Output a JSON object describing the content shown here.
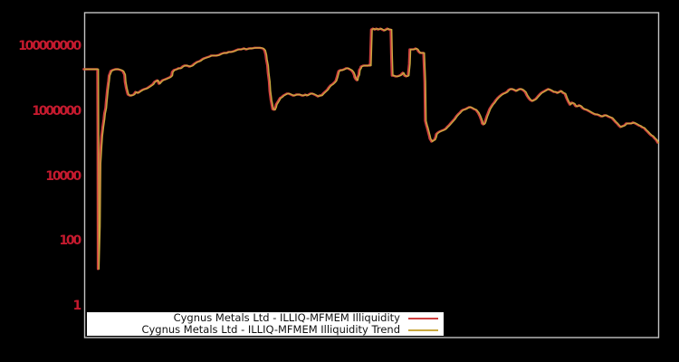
{
  "figure": {
    "background": "#000000",
    "frame_color": "#c3c3c3",
    "tick_label_color": "#c41a2e",
    "legend_background": "#ffffff"
  },
  "chart_data": {
    "type": "line",
    "title": "",
    "xlabel": "",
    "ylabel": "",
    "x_axis_labels_visible": false,
    "grid": false,
    "legend_position": "bottom-inside",
    "y_scale": "log10",
    "ylim_log10": [
      -0.97,
      9.03
    ],
    "y_ticks": [
      {
        "label": "100000000",
        "log10": 8
      },
      {
        "label": "1000000",
        "log10": 6
      },
      {
        "label": "10000",
        "log10": 4
      },
      {
        "label": "100",
        "log10": 2
      },
      {
        "label": "1",
        "log10": 0
      }
    ],
    "series": [
      {
        "name": "Cygnus Metals Ltd - ILLIQ-MFMEM Illiquidity",
        "color": "#cf4040",
        "width": 2.4
      },
      {
        "name": "Cygnus Metals Ltd - ILLIQ-MFMEM Illiquidity Trend",
        "color": "#c9a83f",
        "width": 1.4,
        "note": "coincides with illiquidity series at chart resolution"
      }
    ],
    "points_t_log10": [
      [
        0.0,
        7.29
      ],
      [
        0.024,
        7.29
      ],
      [
        0.0245,
        5.23
      ],
      [
        0.025,
        1.14
      ],
      [
        0.027,
        2.45
      ],
      [
        0.028,
        4.39
      ],
      [
        0.03,
        4.95
      ],
      [
        0.031,
        5.23
      ],
      [
        0.033,
        5.51
      ],
      [
        0.035,
        5.76
      ],
      [
        0.036,
        5.92
      ],
      [
        0.038,
        6.09
      ],
      [
        0.039,
        6.29
      ],
      [
        0.041,
        6.65
      ],
      [
        0.043,
        6.93
      ],
      [
        0.044,
        7.09
      ],
      [
        0.046,
        7.18
      ],
      [
        0.047,
        7.23
      ],
      [
        0.05,
        7.26
      ],
      [
        0.055,
        7.29
      ],
      [
        0.06,
        7.29
      ],
      [
        0.065,
        7.26
      ],
      [
        0.068,
        7.23
      ],
      [
        0.071,
        7.12
      ],
      [
        0.072,
        6.9
      ],
      [
        0.074,
        6.7
      ],
      [
        0.076,
        6.56
      ],
      [
        0.077,
        6.51
      ],
      [
        0.08,
        6.48
      ],
      [
        0.083,
        6.48
      ],
      [
        0.087,
        6.51
      ],
      [
        0.09,
        6.59
      ],
      [
        0.094,
        6.56
      ],
      [
        0.099,
        6.62
      ],
      [
        0.102,
        6.65
      ],
      [
        0.106,
        6.68
      ],
      [
        0.11,
        6.7
      ],
      [
        0.115,
        6.76
      ],
      [
        0.12,
        6.82
      ],
      [
        0.123,
        6.9
      ],
      [
        0.128,
        6.95
      ],
      [
        0.131,
        6.84
      ],
      [
        0.134,
        6.9
      ],
      [
        0.137,
        6.95
      ],
      [
        0.142,
        6.98
      ],
      [
        0.146,
        7.01
      ],
      [
        0.15,
        7.04
      ],
      [
        0.153,
        7.09
      ],
      [
        0.154,
        7.2
      ],
      [
        0.157,
        7.26
      ],
      [
        0.162,
        7.29
      ],
      [
        0.165,
        7.32
      ],
      [
        0.169,
        7.32
      ],
      [
        0.172,
        7.37
      ],
      [
        0.175,
        7.4
      ],
      [
        0.18,
        7.4
      ],
      [
        0.184,
        7.37
      ],
      [
        0.189,
        7.4
      ],
      [
        0.192,
        7.45
      ],
      [
        0.197,
        7.51
      ],
      [
        0.202,
        7.54
      ],
      [
        0.206,
        7.59
      ],
      [
        0.209,
        7.62
      ],
      [
        0.214,
        7.65
      ],
      [
        0.219,
        7.68
      ],
      [
        0.222,
        7.71
      ],
      [
        0.227,
        7.71
      ],
      [
        0.231,
        7.71
      ],
      [
        0.236,
        7.73
      ],
      [
        0.239,
        7.76
      ],
      [
        0.244,
        7.79
      ],
      [
        0.249,
        7.79
      ],
      [
        0.252,
        7.82
      ],
      [
        0.257,
        7.82
      ],
      [
        0.261,
        7.84
      ],
      [
        0.265,
        7.87
      ],
      [
        0.269,
        7.9
      ],
      [
        0.274,
        7.9
      ],
      [
        0.279,
        7.93
      ],
      [
        0.283,
        7.9
      ],
      [
        0.288,
        7.93
      ],
      [
        0.293,
        7.93
      ],
      [
        0.298,
        7.95
      ],
      [
        0.302,
        7.95
      ],
      [
        0.307,
        7.95
      ],
      [
        0.312,
        7.93
      ],
      [
        0.315,
        7.87
      ],
      [
        0.317,
        7.73
      ],
      [
        0.318,
        7.59
      ],
      [
        0.32,
        7.4
      ],
      [
        0.321,
        7.18
      ],
      [
        0.323,
        6.9
      ],
      [
        0.324,
        6.62
      ],
      [
        0.326,
        6.34
      ],
      [
        0.328,
        6.15
      ],
      [
        0.329,
        6.06
      ],
      [
        0.332,
        6.04
      ],
      [
        0.334,
        6.12
      ],
      [
        0.335,
        6.2
      ],
      [
        0.339,
        6.31
      ],
      [
        0.342,
        6.4
      ],
      [
        0.345,
        6.43
      ],
      [
        0.348,
        6.48
      ],
      [
        0.351,
        6.51
      ],
      [
        0.354,
        6.54
      ],
      [
        0.357,
        6.54
      ],
      [
        0.361,
        6.51
      ],
      [
        0.364,
        6.48
      ],
      [
        0.367,
        6.48
      ],
      [
        0.37,
        6.51
      ],
      [
        0.373,
        6.51
      ],
      [
        0.376,
        6.51
      ],
      [
        0.38,
        6.48
      ],
      [
        0.383,
        6.48
      ],
      [
        0.386,
        6.51
      ],
      [
        0.389,
        6.48
      ],
      [
        0.392,
        6.51
      ],
      [
        0.395,
        6.54
      ],
      [
        0.398,
        6.54
      ],
      [
        0.402,
        6.51
      ],
      [
        0.405,
        6.48
      ],
      [
        0.408,
        6.45
      ],
      [
        0.411,
        6.48
      ],
      [
        0.414,
        6.48
      ],
      [
        0.417,
        6.54
      ],
      [
        0.42,
        6.59
      ],
      [
        0.424,
        6.65
      ],
      [
        0.427,
        6.73
      ],
      [
        0.43,
        6.79
      ],
      [
        0.433,
        6.82
      ],
      [
        0.436,
        6.87
      ],
      [
        0.439,
        6.93
      ],
      [
        0.441,
        7.04
      ],
      [
        0.443,
        7.18
      ],
      [
        0.444,
        7.23
      ],
      [
        0.447,
        7.26
      ],
      [
        0.45,
        7.26
      ],
      [
        0.454,
        7.29
      ],
      [
        0.457,
        7.32
      ],
      [
        0.46,
        7.32
      ],
      [
        0.463,
        7.29
      ],
      [
        0.466,
        7.26
      ],
      [
        0.469,
        7.2
      ],
      [
        0.471,
        7.12
      ],
      [
        0.472,
        7.04
      ],
      [
        0.474,
        6.98
      ],
      [
        0.476,
        6.95
      ],
      [
        0.477,
        7.04
      ],
      [
        0.479,
        7.12
      ],
      [
        0.48,
        7.26
      ],
      [
        0.482,
        7.32
      ],
      [
        0.483,
        7.37
      ],
      [
        0.487,
        7.4
      ],
      [
        0.491,
        7.4
      ],
      [
        0.496,
        7.4
      ],
      [
        0.498,
        7.43
      ],
      [
        0.499,
        7.4
      ],
      [
        0.501,
        8.51
      ],
      [
        0.504,
        8.54
      ],
      [
        0.507,
        8.51
      ],
      [
        0.51,
        8.54
      ],
      [
        0.513,
        8.51
      ],
      [
        0.517,
        8.54
      ],
      [
        0.52,
        8.51
      ],
      [
        0.523,
        8.48
      ],
      [
        0.526,
        8.51
      ],
      [
        0.529,
        8.54
      ],
      [
        0.532,
        8.51
      ],
      [
        0.535,
        8.51
      ],
      [
        0.536,
        7.73
      ],
      [
        0.537,
        7.09
      ],
      [
        0.54,
        7.09
      ],
      [
        0.543,
        7.07
      ],
      [
        0.546,
        7.07
      ],
      [
        0.55,
        7.09
      ],
      [
        0.553,
        7.12
      ],
      [
        0.554,
        7.15
      ],
      [
        0.556,
        7.18
      ],
      [
        0.557,
        7.15
      ],
      [
        0.559,
        7.09
      ],
      [
        0.562,
        7.07
      ],
      [
        0.565,
        7.09
      ],
      [
        0.567,
        7.45
      ],
      [
        0.568,
        7.9
      ],
      [
        0.572,
        7.9
      ],
      [
        0.575,
        7.9
      ],
      [
        0.578,
        7.93
      ],
      [
        0.581,
        7.9
      ],
      [
        0.583,
        7.84
      ],
      [
        0.586,
        7.79
      ],
      [
        0.589,
        7.79
      ],
      [
        0.592,
        7.79
      ],
      [
        0.594,
        6.9
      ],
      [
        0.595,
        5.7
      ],
      [
        0.597,
        5.56
      ],
      [
        0.598,
        5.51
      ],
      [
        0.6,
        5.37
      ],
      [
        0.602,
        5.23
      ],
      [
        0.603,
        5.15
      ],
      [
        0.605,
        5.09
      ],
      [
        0.606,
        5.06
      ],
      [
        0.608,
        5.09
      ],
      [
        0.611,
        5.12
      ],
      [
        0.613,
        5.2
      ],
      [
        0.614,
        5.29
      ],
      [
        0.617,
        5.34
      ],
      [
        0.62,
        5.37
      ],
      [
        0.624,
        5.4
      ],
      [
        0.627,
        5.42
      ],
      [
        0.63,
        5.45
      ],
      [
        0.633,
        5.51
      ],
      [
        0.636,
        5.56
      ],
      [
        0.639,
        5.62
      ],
      [
        0.643,
        5.7
      ],
      [
        0.646,
        5.76
      ],
      [
        0.649,
        5.84
      ],
      [
        0.652,
        5.9
      ],
      [
        0.655,
        5.95
      ],
      [
        0.658,
        6.01
      ],
      [
        0.661,
        6.04
      ],
      [
        0.665,
        6.06
      ],
      [
        0.668,
        6.09
      ],
      [
        0.671,
        6.12
      ],
      [
        0.674,
        6.12
      ],
      [
        0.677,
        6.09
      ],
      [
        0.68,
        6.06
      ],
      [
        0.683,
        6.04
      ],
      [
        0.687,
        5.95
      ],
      [
        0.69,
        5.84
      ],
      [
        0.693,
        5.7
      ],
      [
        0.694,
        5.62
      ],
      [
        0.696,
        5.59
      ],
      [
        0.698,
        5.62
      ],
      [
        0.699,
        5.67
      ],
      [
        0.702,
        5.84
      ],
      [
        0.704,
        5.92
      ],
      [
        0.707,
        6.06
      ],
      [
        0.709,
        6.12
      ],
      [
        0.712,
        6.2
      ],
      [
        0.715,
        6.26
      ],
      [
        0.718,
        6.34
      ],
      [
        0.721,
        6.4
      ],
      [
        0.724,
        6.45
      ],
      [
        0.728,
        6.51
      ],
      [
        0.731,
        6.54
      ],
      [
        0.734,
        6.56
      ],
      [
        0.737,
        6.59
      ],
      [
        0.74,
        6.65
      ],
      [
        0.743,
        6.68
      ],
      [
        0.746,
        6.68
      ],
      [
        0.75,
        6.65
      ],
      [
        0.753,
        6.62
      ],
      [
        0.756,
        6.65
      ],
      [
        0.759,
        6.68
      ],
      [
        0.762,
        6.68
      ],
      [
        0.765,
        6.65
      ],
      [
        0.769,
        6.59
      ],
      [
        0.772,
        6.48
      ],
      [
        0.775,
        6.4
      ],
      [
        0.778,
        6.34
      ],
      [
        0.781,
        6.31
      ],
      [
        0.784,
        6.34
      ],
      [
        0.787,
        6.37
      ],
      [
        0.791,
        6.45
      ],
      [
        0.794,
        6.51
      ],
      [
        0.797,
        6.56
      ],
      [
        0.8,
        6.59
      ],
      [
        0.803,
        6.62
      ],
      [
        0.806,
        6.65
      ],
      [
        0.809,
        6.68
      ],
      [
        0.813,
        6.65
      ],
      [
        0.816,
        6.62
      ],
      [
        0.819,
        6.59
      ],
      [
        0.822,
        6.59
      ],
      [
        0.825,
        6.56
      ],
      [
        0.828,
        6.59
      ],
      [
        0.831,
        6.62
      ],
      [
        0.835,
        6.56
      ],
      [
        0.838,
        6.54
      ],
      [
        0.841,
        6.4
      ],
      [
        0.844,
        6.29
      ],
      [
        0.847,
        6.2
      ],
      [
        0.85,
        6.26
      ],
      [
        0.854,
        6.23
      ],
      [
        0.857,
        6.15
      ],
      [
        0.86,
        6.15
      ],
      [
        0.863,
        6.18
      ],
      [
        0.866,
        6.15
      ],
      [
        0.869,
        6.09
      ],
      [
        0.872,
        6.06
      ],
      [
        0.876,
        6.04
      ],
      [
        0.879,
        6.01
      ],
      [
        0.882,
        5.98
      ],
      [
        0.885,
        5.95
      ],
      [
        0.888,
        5.92
      ],
      [
        0.891,
        5.9
      ],
      [
        0.894,
        5.9
      ],
      [
        0.898,
        5.87
      ],
      [
        0.901,
        5.84
      ],
      [
        0.904,
        5.84
      ],
      [
        0.907,
        5.87
      ],
      [
        0.91,
        5.87
      ],
      [
        0.913,
        5.84
      ],
      [
        0.917,
        5.81
      ],
      [
        0.92,
        5.79
      ],
      [
        0.923,
        5.73
      ],
      [
        0.926,
        5.67
      ],
      [
        0.929,
        5.62
      ],
      [
        0.932,
        5.56
      ],
      [
        0.935,
        5.51
      ],
      [
        0.939,
        5.54
      ],
      [
        0.942,
        5.56
      ],
      [
        0.945,
        5.62
      ],
      [
        0.948,
        5.62
      ],
      [
        0.951,
        5.62
      ],
      [
        0.954,
        5.62
      ],
      [
        0.957,
        5.65
      ],
      [
        0.961,
        5.62
      ],
      [
        0.964,
        5.59
      ],
      [
        0.967,
        5.56
      ],
      [
        0.97,
        5.54
      ],
      [
        0.972,
        5.51
      ],
      [
        0.976,
        5.48
      ],
      [
        0.979,
        5.42
      ],
      [
        0.982,
        5.37
      ],
      [
        0.985,
        5.31
      ],
      [
        0.988,
        5.26
      ],
      [
        0.991,
        5.23
      ],
      [
        0.994,
        5.17
      ],
      [
        0.997,
        5.12
      ],
      [
        1.0,
        5.03
      ]
    ]
  }
}
